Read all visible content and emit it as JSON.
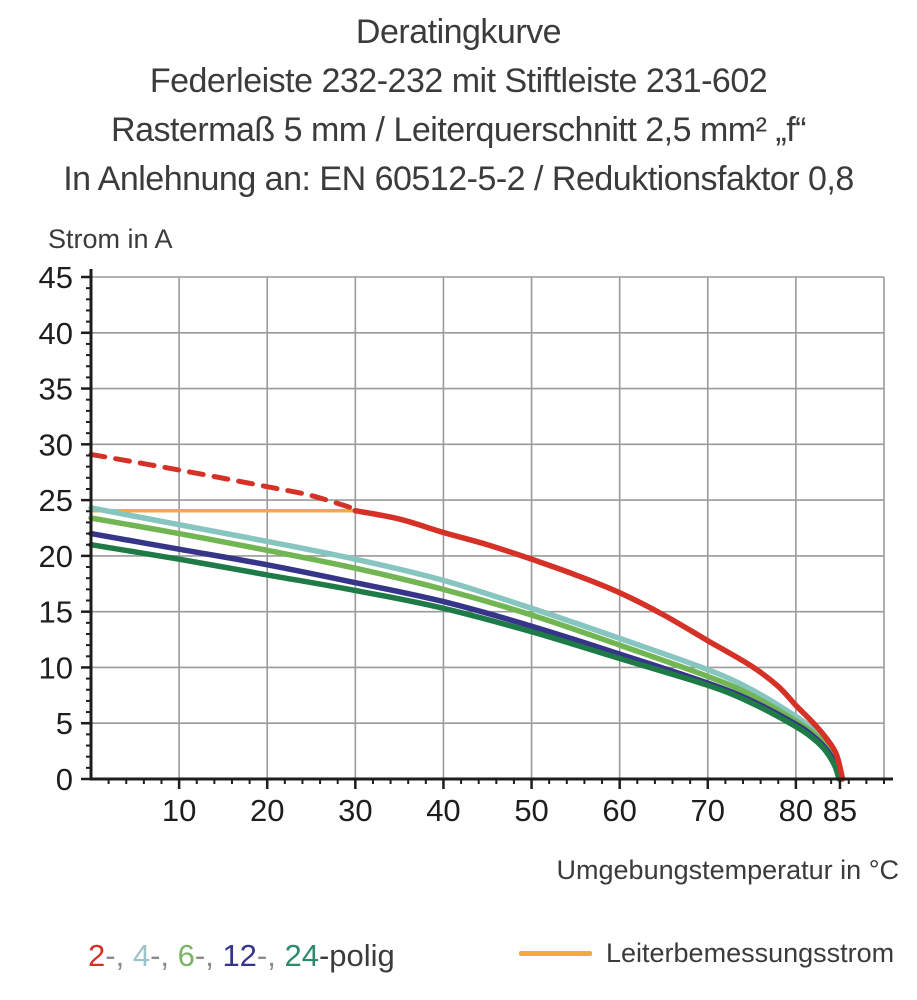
{
  "header": {
    "line1": "Deratingkurve",
    "line2": "Federleiste 232-232 mit Stiftleiste 231-602",
    "line3": "Rastermaß 5 mm / Leiterquerschnitt 2,5 mm² „f“",
    "line4": "In Anlehnung an: EN 60512-5-2 / Reduktionsfaktor 0,8"
  },
  "chart_data": {
    "type": "line",
    "ylabel": "Strom in A",
    "xlabel": "Umgebungstemperatur in °C",
    "xlim": [
      0,
      90
    ],
    "ylim": [
      0,
      45
    ],
    "x_major_ticks": [
      10,
      20,
      30,
      40,
      50,
      60,
      70,
      80,
      85
    ],
    "x_gridlines": [
      10,
      20,
      30,
      40,
      50,
      60,
      70,
      80,
      90
    ],
    "x_minor_step": 2,
    "y_major_ticks": [
      0,
      5,
      10,
      15,
      20,
      25,
      30,
      35,
      40,
      45
    ],
    "y_gridlines": [
      5,
      10,
      15,
      20,
      25,
      30,
      35,
      40,
      45
    ],
    "y_minor_step": 1,
    "grid_on": true,
    "grid_color": "#9a9a99",
    "axis_color": "#1d1d1b",
    "series": [
      {
        "name": "Leiterbemessungsstrom",
        "color": "#efab40",
        "width": 3.5,
        "dash": "",
        "points": [
          [
            0,
            24.05
          ],
          [
            30,
            24.05
          ]
        ]
      },
      {
        "name": "4-polig",
        "color": "#87c5c1",
        "width": 5.5,
        "dash": "",
        "points": [
          [
            0,
            24.3
          ],
          [
            10,
            22.8
          ],
          [
            20,
            21.3
          ],
          [
            30,
            19.7
          ],
          [
            40,
            17.8
          ],
          [
            50,
            15.3
          ],
          [
            60,
            12.6
          ],
          [
            70,
            9.8
          ],
          [
            75,
            8.0
          ],
          [
            80,
            5.6
          ],
          [
            82,
            4.4
          ],
          [
            83.5,
            3.1
          ],
          [
            84.6,
            1.6
          ],
          [
            85.1,
            0
          ]
        ]
      },
      {
        "name": "6-polig",
        "color": "#72b553",
        "width": 5.5,
        "dash": "",
        "points": [
          [
            0,
            23.4
          ],
          [
            10,
            22.0
          ],
          [
            20,
            20.5
          ],
          [
            30,
            18.9
          ],
          [
            40,
            17.0
          ],
          [
            50,
            14.7
          ],
          [
            60,
            12.0
          ],
          [
            70,
            9.2
          ],
          [
            75,
            7.5
          ],
          [
            80,
            5.2
          ],
          [
            82,
            4.1
          ],
          [
            83.5,
            2.9
          ],
          [
            84.7,
            1.5
          ],
          [
            85.2,
            0
          ]
        ]
      },
      {
        "name": "12-polig",
        "color": "#36358a",
        "width": 5.5,
        "dash": "",
        "points": [
          [
            0,
            22.0
          ],
          [
            10,
            20.6
          ],
          [
            20,
            19.2
          ],
          [
            30,
            17.6
          ],
          [
            40,
            15.9
          ],
          [
            50,
            13.7
          ],
          [
            60,
            11.2
          ],
          [
            70,
            8.6
          ],
          [
            75,
            7.0
          ],
          [
            80,
            4.9
          ],
          [
            82,
            3.8
          ],
          [
            83.5,
            2.6
          ],
          [
            84.5,
            1.3
          ],
          [
            85,
            0
          ]
        ]
      },
      {
        "name": "24-polig",
        "color": "#1e7b48",
        "width": 5.5,
        "dash": "",
        "points": [
          [
            0,
            21.0
          ],
          [
            10,
            19.7
          ],
          [
            20,
            18.3
          ],
          [
            30,
            16.9
          ],
          [
            40,
            15.3
          ],
          [
            50,
            13.2
          ],
          [
            60,
            10.8
          ],
          [
            70,
            8.4
          ],
          [
            75,
            6.8
          ],
          [
            80,
            4.7
          ],
          [
            82,
            3.6
          ],
          [
            83.4,
            2.5
          ],
          [
            84.4,
            1.2
          ],
          [
            84.9,
            0
          ]
        ]
      },
      {
        "name": "2-polig-dashed",
        "color": "#d53127",
        "width": 5,
        "dash": "14 11",
        "points": [
          [
            0,
            29.1
          ],
          [
            10,
            27.7
          ],
          [
            20,
            26.2
          ],
          [
            25,
            25.4
          ],
          [
            30,
            24.2
          ]
        ]
      },
      {
        "name": "2-polig",
        "color": "#d53127",
        "width": 5.5,
        "dash": "",
        "points": [
          [
            30,
            24.05
          ],
          [
            35,
            23.3
          ],
          [
            40,
            22.1
          ],
          [
            45,
            21.0
          ],
          [
            50,
            19.7
          ],
          [
            55,
            18.3
          ],
          [
            60,
            16.7
          ],
          [
            65,
            14.7
          ],
          [
            70,
            12.4
          ],
          [
            75,
            10.1
          ],
          [
            78,
            8.3
          ],
          [
            80,
            6.6
          ],
          [
            82,
            5.0
          ],
          [
            83.5,
            3.6
          ],
          [
            84.6,
            2.2
          ],
          [
            85.3,
            0
          ]
        ]
      }
    ]
  },
  "legend": {
    "poles_parts": [
      {
        "text": "2",
        "color": "#d53127"
      },
      {
        "text": "-, ",
        "color": "#8a8a88"
      },
      {
        "text": "4",
        "color": "#9cc4c8"
      },
      {
        "text": "-, ",
        "color": "#8a8a88"
      },
      {
        "text": "6",
        "color": "#7cb468"
      },
      {
        "text": "-, ",
        "color": "#8a8a88"
      },
      {
        "text": "12",
        "color": "#36358a"
      },
      {
        "text": "-, ",
        "color": "#8a8a88"
      },
      {
        "text": "24",
        "color": "#2e8a67"
      },
      {
        "text": "-polig",
        "color": "#3b3b3a"
      }
    ],
    "rated_current_label": "Leiterbemessungsstrom",
    "rated_current_color": "#efab40"
  }
}
